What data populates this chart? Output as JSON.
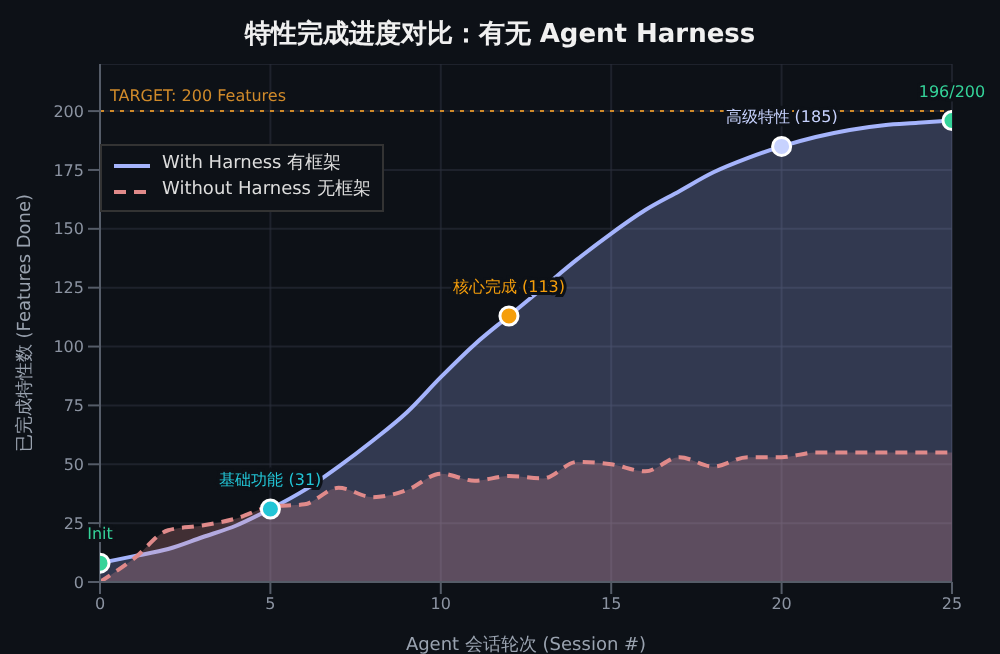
{
  "chart_data": {
    "type": "area",
    "title": "特性完成进度对比：有无 Agent Harness",
    "xlabel": "Agent 会话轮次 (Session #)",
    "ylabel": "已完成特性数 (Features Done)",
    "x": [
      0,
      1,
      2,
      3,
      4,
      5,
      6,
      7,
      8,
      9,
      10,
      11,
      12,
      13,
      14,
      15,
      16,
      17,
      18,
      19,
      20,
      21,
      22,
      23,
      24,
      25
    ],
    "series": [
      {
        "name": "With Harness 有框架",
        "color": "#a5b4fc",
        "line_style": "solid",
        "values": [
          8,
          11,
          14,
          19,
          24,
          31,
          39,
          49,
          60,
          72,
          87,
          101,
          113,
          125,
          137,
          148,
          158,
          166,
          174,
          180,
          185,
          189,
          192,
          194,
          195,
          196
        ]
      },
      {
        "name": "Without Harness 无框架",
        "color": "#e08a8a",
        "line_style": "dashed",
        "values": [
          0,
          10,
          22,
          24,
          27,
          32,
          33,
          40,
          36,
          39,
          46,
          43,
          45,
          44,
          51,
          50,
          47,
          53,
          49,
          53,
          53,
          55,
          55,
          55,
          55,
          55
        ]
      },
      {
        "type": "scatter",
        "marker": "circle",
        "x": [
          0,
          5,
          12,
          20,
          25
        ],
        "values": [
          8,
          31,
          113,
          185,
          196
        ],
        "colors": [
          "#34d399",
          "#22c5d6",
          "#f59e0b",
          "#c7d2fe",
          "#34d399"
        ]
      }
    ],
    "annotations": [
      {
        "text": "Init",
        "x": 0,
        "y": 8
      },
      {
        "text": "基础功能 (31)",
        "x": 5,
        "y": 31
      },
      {
        "text": "核心完成 (113)",
        "x": 12,
        "y": 113
      },
      {
        "text": "高级特性 (185)",
        "x": 20,
        "y": 185
      },
      {
        "text": "196/200",
        "x": 25,
        "y": 196
      }
    ],
    "ref_lines": [
      {
        "axis": "y",
        "value": 200,
        "label": "TARGET: 200 Features",
        "color": "#d08a2a",
        "line_style": "dotted"
      }
    ],
    "xlim": [
      0,
      25
    ],
    "xticks": [
      0,
      5,
      10,
      15,
      20,
      25
    ],
    "ylim": [
      0,
      220
    ],
    "yticks": [
      0,
      25,
      50,
      75,
      100,
      125,
      150,
      175,
      200
    ],
    "grid": true,
    "legend": "top left",
    "marker": "none"
  }
}
